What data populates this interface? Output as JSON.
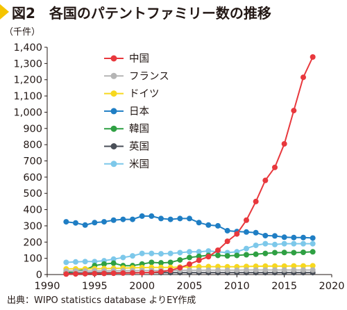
{
  "header": {
    "title": "図2　各国のパテントファミリー数の推移"
  },
  "source": "出典：WIPO statistics database よりEY作成",
  "chart_data": {
    "type": "line",
    "unit_label": "（千件）",
    "ylim": [
      0,
      1400
    ],
    "yticks": [
      "0",
      "100",
      "200",
      "300",
      "400",
      "500",
      "600",
      "700",
      "800",
      "900",
      "1,000",
      "1,100",
      "1,200",
      "1,300",
      "1,400"
    ],
    "xlim": [
      1990,
      2020
    ],
    "xticks": [
      "1990",
      "1995",
      "2000",
      "2005",
      "2010",
      "2015",
      "2020"
    ],
    "grid": false,
    "legend_position": "top-left",
    "x": [
      1992,
      1993,
      1994,
      1995,
      1996,
      1997,
      1998,
      1999,
      2000,
      2001,
      2002,
      2003,
      2004,
      2005,
      2006,
      2007,
      2008,
      2009,
      2010,
      2011,
      2012,
      2013,
      2014,
      2015,
      2016,
      2017,
      2018
    ],
    "series": [
      {
        "name": "中国",
        "color": "#e8383d",
        "values": [
          3,
          4,
          5,
          6,
          7,
          8,
          9,
          10,
          11,
          13,
          17,
          26,
          42,
          64,
          88,
          110,
          150,
          205,
          250,
          335,
          450,
          580,
          660,
          805,
          1010,
          1215,
          1340
        ]
      },
      {
        "name": "フランス",
        "color": "#b5b5b5",
        "values": [
          22,
          22,
          22,
          23,
          23,
          24,
          24,
          24,
          25,
          25,
          25,
          25,
          26,
          26,
          26,
          27,
          27,
          27,
          27,
          28,
          28,
          28,
          28,
          28,
          28,
          28,
          28
        ]
      },
      {
        "name": "ドイツ",
        "color": "#f7d81e",
        "values": [
          35,
          35,
          35,
          36,
          37,
          38,
          40,
          41,
          43,
          44,
          44,
          44,
          46,
          47,
          48,
          49,
          49,
          48,
          48,
          50,
          51,
          52,
          52,
          52,
          53,
          53,
          54
        ]
      },
      {
        "name": "日本",
        "color": "#1f7ec4",
        "values": [
          325,
          318,
          305,
          320,
          325,
          335,
          340,
          340,
          360,
          360,
          345,
          340,
          345,
          345,
          320,
          305,
          300,
          270,
          265,
          262,
          258,
          240,
          238,
          230,
          228,
          228,
          225
        ]
      },
      {
        "name": "韓国",
        "color": "#2fa043",
        "values": [
          15,
          22,
          30,
          55,
          65,
          70,
          55,
          55,
          65,
          75,
          72,
          75,
          90,
          105,
          112,
          118,
          118,
          115,
          118,
          122,
          125,
          130,
          135,
          136,
          135,
          137,
          140
        ]
      },
      {
        "name": "英国",
        "color": "#4a4f58",
        "values": [
          10,
          10,
          10,
          11,
          11,
          11,
          11,
          12,
          12,
          12,
          12,
          12,
          12,
          12,
          12,
          12,
          12,
          12,
          12,
          12,
          12,
          12,
          12,
          12,
          12,
          12,
          12
        ]
      },
      {
        "name": "米国",
        "color": "#7dc8ea",
        "values": [
          75,
          78,
          80,
          80,
          85,
          95,
          105,
          115,
          130,
          130,
          128,
          130,
          135,
          140,
          140,
          145,
          140,
          135,
          140,
          160,
          180,
          190,
          185,
          190,
          190,
          190,
          190
        ]
      }
    ]
  }
}
